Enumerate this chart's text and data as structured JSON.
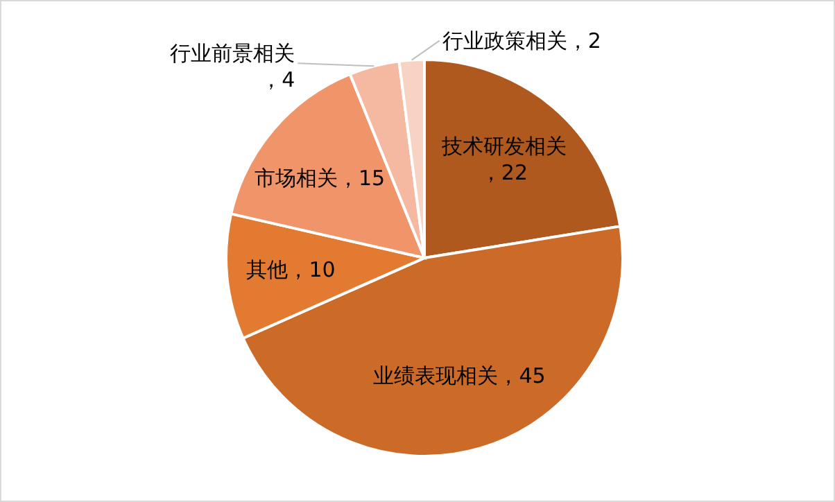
{
  "chart_data": {
    "type": "pie",
    "categories": [
      "技术研发相关",
      "业绩表现相关",
      "其他",
      "市场相关",
      "行业前景相关",
      "行业政策相关"
    ],
    "values": [
      22,
      45,
      10,
      15,
      4,
      2
    ],
    "colors": [
      "#b0591f",
      "#cc6a28",
      "#e27a32",
      "#f0946a",
      "#f4b9a0",
      "#f8d2c2"
    ],
    "value_labels": [
      "，22",
      "，45",
      "，10",
      "，15",
      "，4",
      "，2"
    ],
    "legend": false
  }
}
